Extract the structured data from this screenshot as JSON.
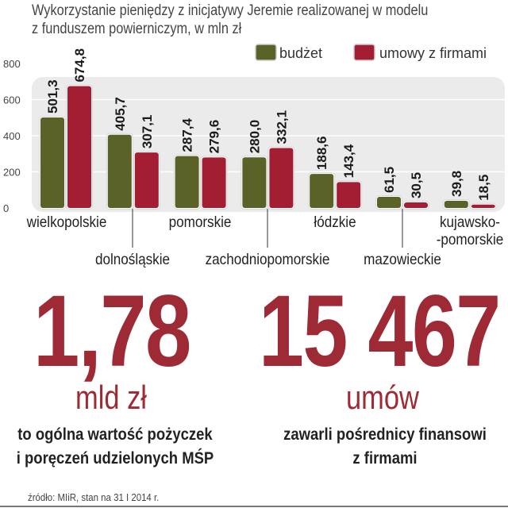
{
  "chart_data": {
    "type": "bar",
    "title": "Wykorzystanie pieniędzy z inicjatywy Jeremie realizowanej w modelu",
    "subtitle": "z funduszem powierniczym, w mln zł",
    "categories": [
      "wielkopolskie",
      "dolnośląskie",
      "pomorskie",
      "zachodniopomorskie",
      "łódzkie",
      "mazowieckie",
      "kujawsko-\n-pomorskie"
    ],
    "series": [
      {
        "name": "budżet",
        "color": "#5a6228",
        "values": [
          501.3,
          405.7,
          287.4,
          280.0,
          188.6,
          61.5,
          39.8
        ],
        "labels": [
          "501,3",
          "405,7",
          "287,4",
          "280,0",
          "188,6",
          "61,5",
          "39,8"
        ]
      },
      {
        "name": "umowy z firmami",
        "color": "#a31d33",
        "values": [
          674.8,
          307.1,
          279.6,
          332.1,
          143.4,
          30.5,
          18.5
        ],
        "labels": [
          "674,8",
          "307,1",
          "279,6",
          "332,1",
          "143,4",
          "30,5",
          "18,5"
        ]
      }
    ],
    "yticks": [
      "0",
      "200",
      "400",
      "600",
      "800"
    ],
    "ylim": [
      0,
      800
    ],
    "grid": true,
    "legend": "top-right"
  },
  "stats": [
    {
      "value": "1,78",
      "unit": "mld zł",
      "desc1": "to ogólna wartość pożyczek",
      "desc2": "i poręczeń udzielonych MŚP"
    },
    {
      "value": "15 467",
      "unit": "umów",
      "desc1": "zawarli pośrednicy finansowi",
      "desc2": "z firmami"
    }
  ],
  "source": "źródło: MIiR, stan na 31 I 2014 r.",
  "colors": {
    "accent": "#9e2a35",
    "green": "#5a6228",
    "red": "#a31d33"
  }
}
